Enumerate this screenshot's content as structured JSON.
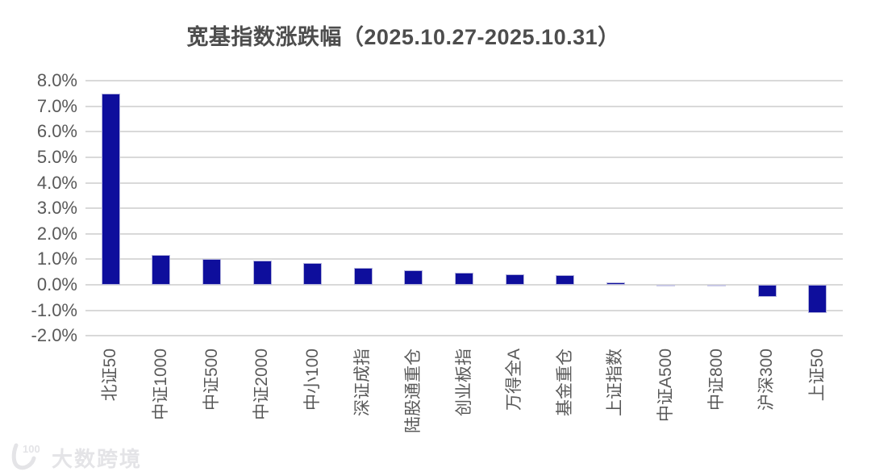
{
  "title": "宽基指数涨跌幅（2025.10.27-2025.10.31）",
  "watermark": {
    "logo_text": "100",
    "brand_text": "大数跨境"
  },
  "chart_data": {
    "type": "bar",
    "title": "宽基指数涨跌幅（2025.10.27-2025.10.31）",
    "categories": [
      "北证50",
      "中证1000",
      "中证500",
      "中证2000",
      "中小100",
      "深证成指",
      "陆股通重仓",
      "创业板指",
      "万得全A",
      "基金重仓",
      "上证指数",
      "中证A500",
      "中证800",
      "沪深300",
      "上证50"
    ],
    "values": [
      7.5,
      1.18,
      1.0,
      0.95,
      0.85,
      0.67,
      0.57,
      0.48,
      0.41,
      0.38,
      0.1,
      -0.03,
      -0.03,
      -0.46,
      -1.1
    ],
    "xlabel": "",
    "ylabel": "",
    "ylim": [
      -2,
      8
    ],
    "yticks": [
      8,
      7,
      6,
      5,
      4,
      3,
      2,
      1,
      0,
      -1,
      -2
    ],
    "ytick_labels": [
      "8.0%",
      "7.0%",
      "6.0%",
      "5.0%",
      "4.0%",
      "3.0%",
      "2.0%",
      "1.0%",
      "0.0%",
      "-1.0%",
      "-2.0%"
    ],
    "grid": true,
    "legend": "none",
    "bar_color": "#0e0e9c",
    "tiny_bar_color": "#c9c9e6",
    "gridline_color": "#d9d9d9",
    "axis_text_color": "#595959",
    "title_color": "#4d4d4d"
  }
}
